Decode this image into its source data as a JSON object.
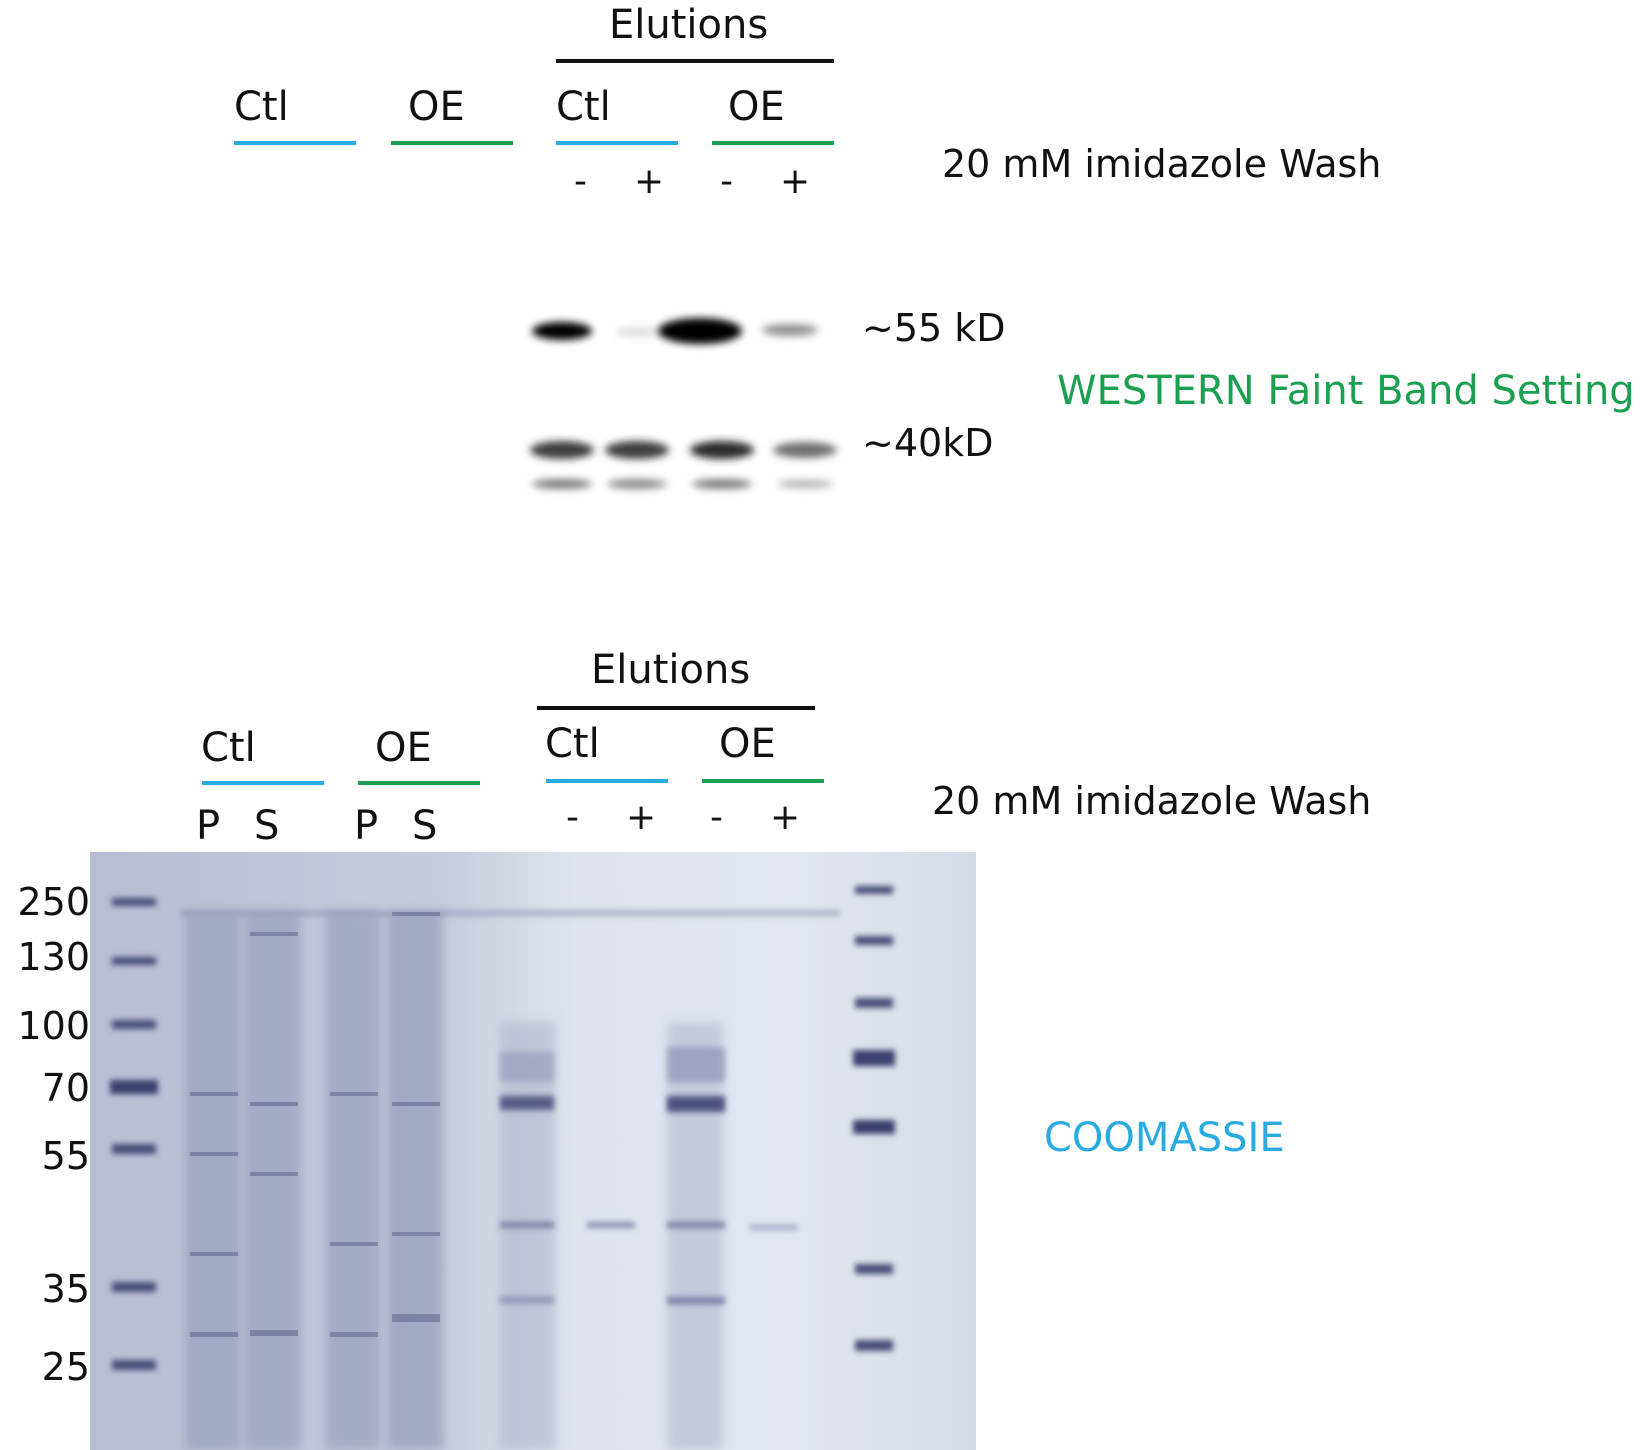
{
  "colors": {
    "ctl": "#29abe2",
    "oe": "#1aa050",
    "western_label": "#1aa050",
    "coomassie_label": "#29abe2",
    "gel_bg": "#d9ddec",
    "band_dark": "#3a3f6e"
  },
  "western": {
    "elutions_label": "Elutions",
    "ctl_label_1": "Ctl",
    "oe_label_1": "OE",
    "ctl_label_2": "Ctl",
    "oe_label_2": "OE",
    "wash_label": "20 mM imidazole Wash",
    "signs": [
      "-",
      "+",
      "-",
      "+"
    ],
    "mw_55": "~55 kD",
    "mw_40": "~40kD",
    "title": "WESTERN Faint Band Setting"
  },
  "coomassie": {
    "elutions_label": "Elutions",
    "ctl_label_1": "Ctl",
    "oe_label_1": "OE",
    "ctl_label_2": "Ctl",
    "oe_label_2": "OE",
    "wash_label": "20 mM imidazole Wash",
    "ps_labels": [
      "P",
      "S",
      "P",
      "S"
    ],
    "signs": [
      "-",
      "+",
      "-",
      "+"
    ],
    "markers": [
      "250",
      "130",
      "100",
      "70",
      "55",
      "35",
      "25"
    ],
    "title": "COOMASSIE"
  }
}
